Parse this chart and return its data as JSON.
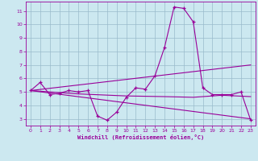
{
  "xlabel": "Windchill (Refroidissement éolien,°C)",
  "bg_color": "#cce8f0",
  "line_color": "#990099",
  "grid_color": "#99bbcc",
  "xlim": [
    -0.5,
    23.5
  ],
  "ylim": [
    2.5,
    11.7
  ],
  "xticks": [
    0,
    1,
    2,
    3,
    4,
    5,
    6,
    7,
    8,
    9,
    10,
    11,
    12,
    13,
    14,
    15,
    16,
    17,
    18,
    19,
    20,
    21,
    22,
    23
  ],
  "yticks": [
    3,
    4,
    5,
    6,
    7,
    8,
    9,
    10,
    11
  ],
  "series1_x": [
    0,
    1,
    2,
    3,
    4,
    5,
    6,
    7,
    8,
    9,
    10,
    11,
    12,
    13,
    14,
    15,
    16,
    17,
    18,
    19,
    20,
    21,
    22,
    23
  ],
  "series1_y": [
    5.1,
    5.7,
    4.8,
    4.9,
    5.1,
    5.0,
    5.1,
    3.2,
    2.9,
    3.5,
    4.6,
    5.3,
    5.2,
    6.2,
    8.3,
    11.3,
    11.2,
    10.2,
    5.3,
    4.8,
    4.8,
    4.8,
    5.0,
    2.9
  ],
  "series2_x": [
    0,
    23
  ],
  "series2_y": [
    5.1,
    3.0
  ],
  "series3_x": [
    0,
    23
  ],
  "series3_y": [
    5.1,
    7.0
  ],
  "series4_x": [
    0,
    5,
    10,
    14,
    17,
    20,
    23
  ],
  "series4_y": [
    5.1,
    4.85,
    4.7,
    4.65,
    4.6,
    4.75,
    4.65
  ]
}
